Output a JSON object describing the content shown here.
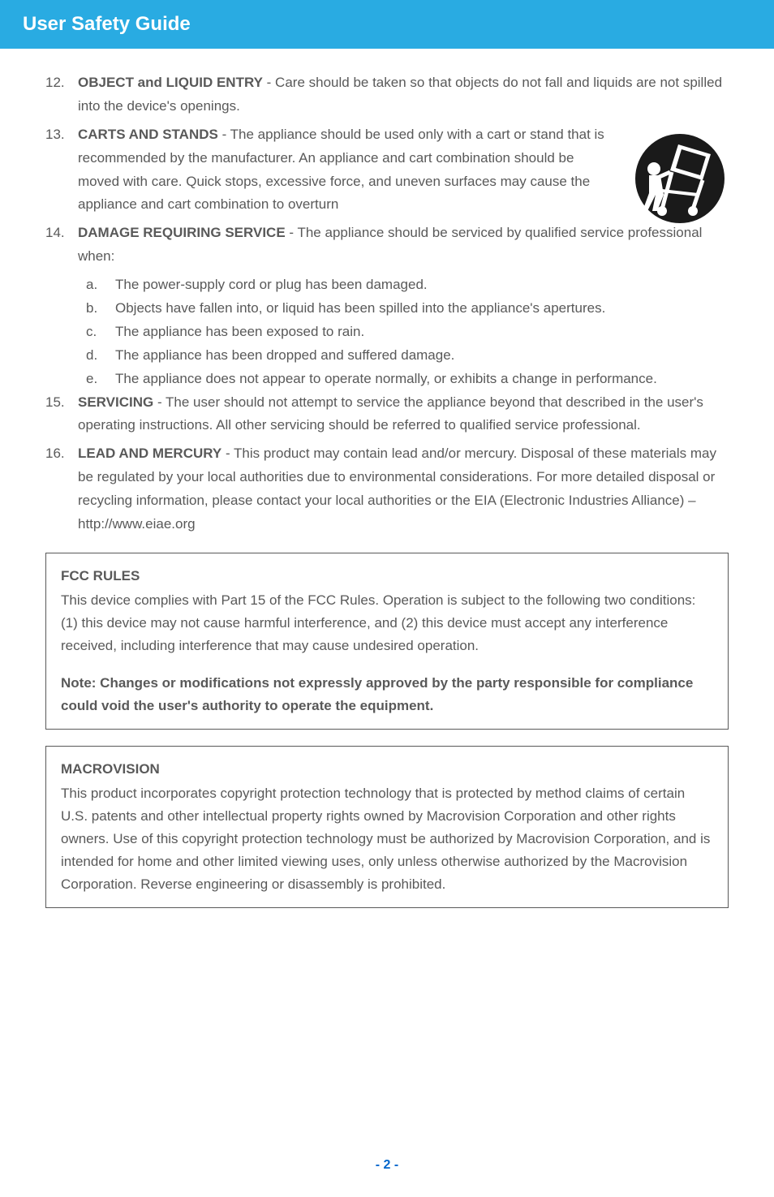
{
  "header": {
    "title": "User Safety Guide"
  },
  "iconColor": "#1a1a1a",
  "textColor": "#595959",
  "headerBg": "#29abe2",
  "pageNumColor": "#0066cc",
  "items": [
    {
      "num": "12.",
      "bold": "OBJECT and LIQUID ENTRY",
      "text": " - Care should be taken so that objects do not fall and liquids are not spilled into the device's openings.",
      "withIcon": false
    },
    {
      "num": "13.",
      "bold": "CARTS AND STANDS",
      "text": " - The appliance should be used only with a cart or stand that is recommended by the manufacturer. An appliance and cart combination should be moved with care. Quick stops, excessive force, and uneven surfaces may cause the appliance and cart combination to overturn",
      "withIcon": true
    },
    {
      "num": "14.",
      "bold": "DAMAGE REQUIRING SERVICE",
      "text": " - The appliance should be serviced by qualified service professional when:",
      "withIcon": false,
      "sub": [
        {
          "l": "a.",
          "t": "The power-supply cord or plug has been damaged."
        },
        {
          "l": "b.",
          "t": "Objects have fallen into, or liquid has been spilled into the appliance's apertures."
        },
        {
          "l": "c.",
          "t": "The appliance has been exposed to rain."
        },
        {
          "l": "d.",
          "t": "The appliance has been dropped and suffered damage."
        },
        {
          "l": "e.",
          "t": "The appliance does not appear to operate normally, or exhibits a change in performance."
        }
      ]
    },
    {
      "num": "15.",
      "bold": "SERVICING",
      "text": " - The user should not attempt to service the appliance beyond that described in the user's operating instructions. All other servicing should be referred to qualified service professional.",
      "withIcon": false
    },
    {
      "num": "16.",
      "bold": "LEAD AND MERCURY",
      "text": " - This product may contain lead and/or mercury. Disposal of these materials may be regulated by your local authorities due to environmental considerations. For more detailed disposal or recycling information, please contact your local authorities or the EIA (Electronic Industries Alliance) – http://www.eiae.org",
      "withIcon": false
    }
  ],
  "fccBox": {
    "title": "FCC RULES",
    "body": "This device complies with Part 15 of the FCC Rules. Operation is subject to the following two conditions: (1) this device may not cause harmful interference, and (2) this device must accept any interference received, including interference that may cause undesired operation.",
    "note": "Note: Changes or modifications not expressly approved by the party responsible for compliance could void the user's authority to operate the equipment."
  },
  "macroBox": {
    "title": "MACROVISION",
    "body": "This product incorporates copyright protection technology that is protected by method claims of certain U.S. patents and other intellectual property rights owned by Macrovision Corporation and other rights owners. Use of this copyright protection technology must be authorized by Macrovision Corporation, and is intended for home and other limited viewing uses, only unless otherwise authorized by the Macrovision Corporation. Reverse engineering or disassembly is prohibited."
  },
  "pageNumber": "- 2 -"
}
